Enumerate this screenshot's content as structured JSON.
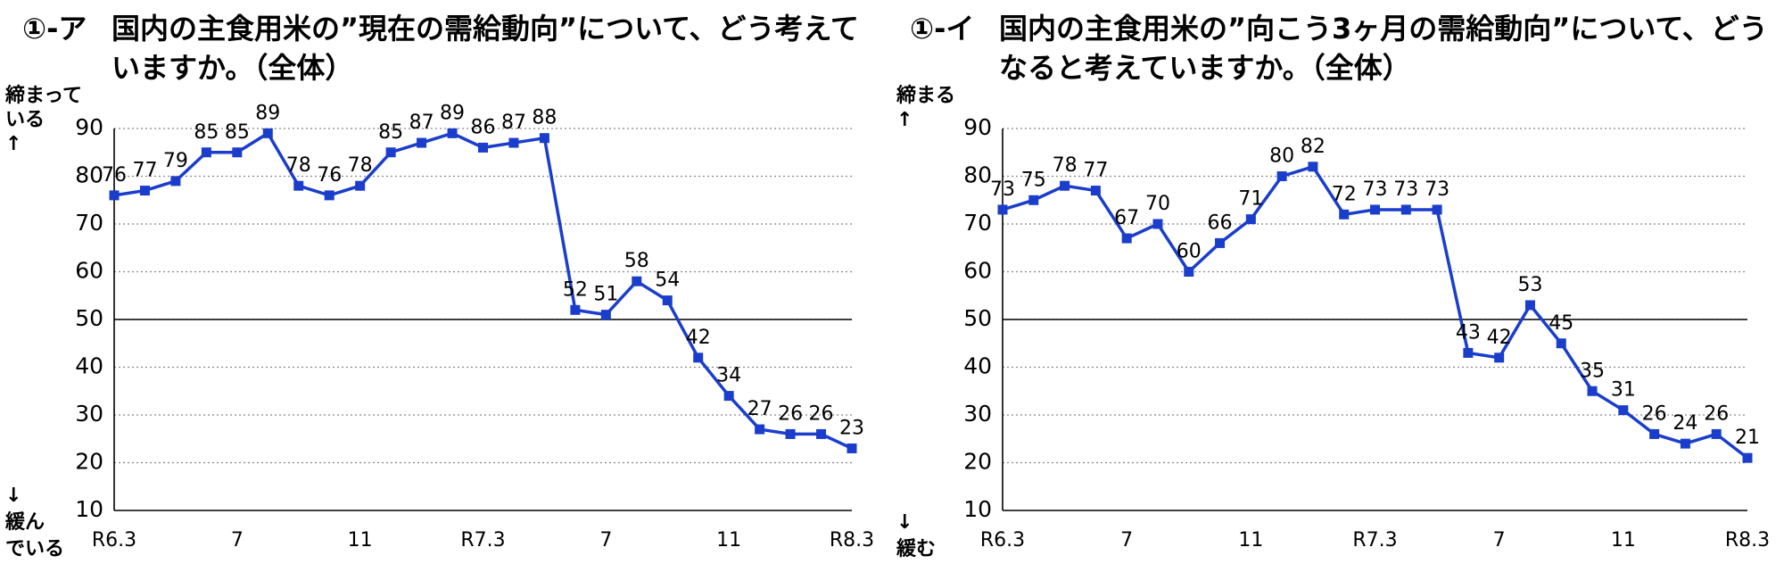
{
  "chart_data": [
    {
      "type": "line",
      "title_prefix": "①-ア",
      "title": "国内の主食用米の”現在の需給動向”について、どう考えていますか。（全体）",
      "y_top_label": [
        "締まって",
        "いる",
        "↑"
      ],
      "y_bottom_label": [
        "↓",
        "緩ん",
        "でいる"
      ],
      "categories": [
        "R6.3",
        null,
        null,
        null,
        "7",
        null,
        null,
        null,
        "11",
        null,
        null,
        null,
        "R7.3",
        null,
        null,
        null,
        "7",
        null,
        null,
        null,
        "11",
        null,
        null,
        null,
        "R8.3"
      ],
      "values": [
        76,
        77,
        79,
        85,
        85,
        89,
        78,
        76,
        78,
        85,
        87,
        89,
        86,
        87,
        88,
        52,
        51,
        58,
        54,
        42,
        34,
        27,
        26,
        26,
        23
      ],
      "color": "#1a3dcc",
      "ylim": [
        10,
        90
      ],
      "yticks": [
        10,
        20,
        30,
        40,
        50,
        60,
        70,
        80,
        90
      ],
      "grid": true,
      "reference_line": 50
    },
    {
      "type": "line",
      "title_prefix": "①-イ",
      "title": "国内の主食用米の”向こう3ヶ月の需給動向”について、どうなると考えていますか。（全体）",
      "y_top_label": [
        "締まる",
        "↑"
      ],
      "y_bottom_label": [
        "↓",
        "緩む"
      ],
      "categories": [
        "R6.3",
        null,
        null,
        null,
        "7",
        null,
        null,
        null,
        "11",
        null,
        null,
        null,
        "R7.3",
        null,
        null,
        null,
        "7",
        null,
        null,
        null,
        "11",
        null,
        null,
        null,
        "R8.3"
      ],
      "values": [
        73,
        75,
        78,
        77,
        67,
        70,
        60,
        66,
        71,
        80,
        82,
        72,
        73,
        73,
        73,
        43,
        42,
        53,
        45,
        35,
        31,
        26,
        24,
        26,
        21
      ],
      "color": "#1a3dcc",
      "ylim": [
        10,
        90
      ],
      "yticks": [
        10,
        20,
        30,
        40,
        50,
        60,
        70,
        80,
        90
      ],
      "grid": true,
      "reference_line": 50
    }
  ]
}
